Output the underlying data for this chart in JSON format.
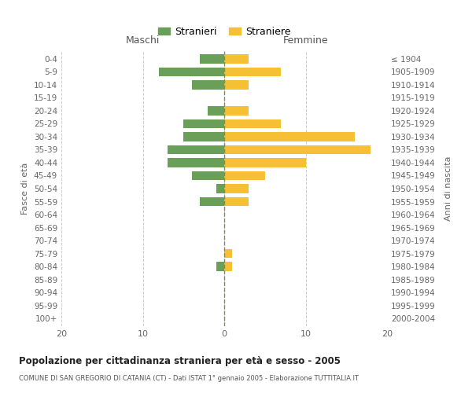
{
  "age_groups": [
    "0-4",
    "5-9",
    "10-14",
    "15-19",
    "20-24",
    "25-29",
    "30-34",
    "35-39",
    "40-44",
    "45-49",
    "50-54",
    "55-59",
    "60-64",
    "65-69",
    "70-74",
    "75-79",
    "80-84",
    "85-89",
    "90-94",
    "95-99",
    "100+"
  ],
  "birth_years": [
    "2000-2004",
    "1995-1999",
    "1990-1994",
    "1985-1989",
    "1980-1984",
    "1975-1979",
    "1970-1974",
    "1965-1969",
    "1960-1964",
    "1955-1959",
    "1950-1954",
    "1945-1949",
    "1940-1944",
    "1935-1939",
    "1930-1934",
    "1925-1929",
    "1920-1924",
    "1915-1919",
    "1910-1914",
    "1905-1909",
    "≤ 1904"
  ],
  "maschi": [
    3,
    8,
    4,
    0,
    2,
    5,
    5,
    7,
    7,
    4,
    1,
    3,
    0,
    0,
    0,
    0,
    1,
    0,
    0,
    0,
    0
  ],
  "femmine": [
    3,
    7,
    3,
    0,
    3,
    7,
    16,
    18,
    10,
    5,
    3,
    3,
    0,
    0,
    0,
    1,
    1,
    0,
    0,
    0,
    0
  ],
  "maschi_color": "#6a9f5a",
  "femmine_color": "#f5c033",
  "title": "Popolazione per cittadinanza straniera per età e sesso - 2005",
  "subtitle": "COMUNE DI SAN GREGORIO DI CATANIA (CT) - Dati ISTAT 1° gennaio 2005 - Elaborazione TUTTITALIA.IT",
  "ylabel_left": "Fasce di età",
  "ylabel_right": "Anni di nascita",
  "xlabel_left": "Maschi",
  "xlabel_right": "Femmine",
  "legend_stranieri": "Stranieri",
  "legend_straniere": "Straniere",
  "xlim": 20,
  "background_color": "#ffffff",
  "grid_color": "#cccccc"
}
